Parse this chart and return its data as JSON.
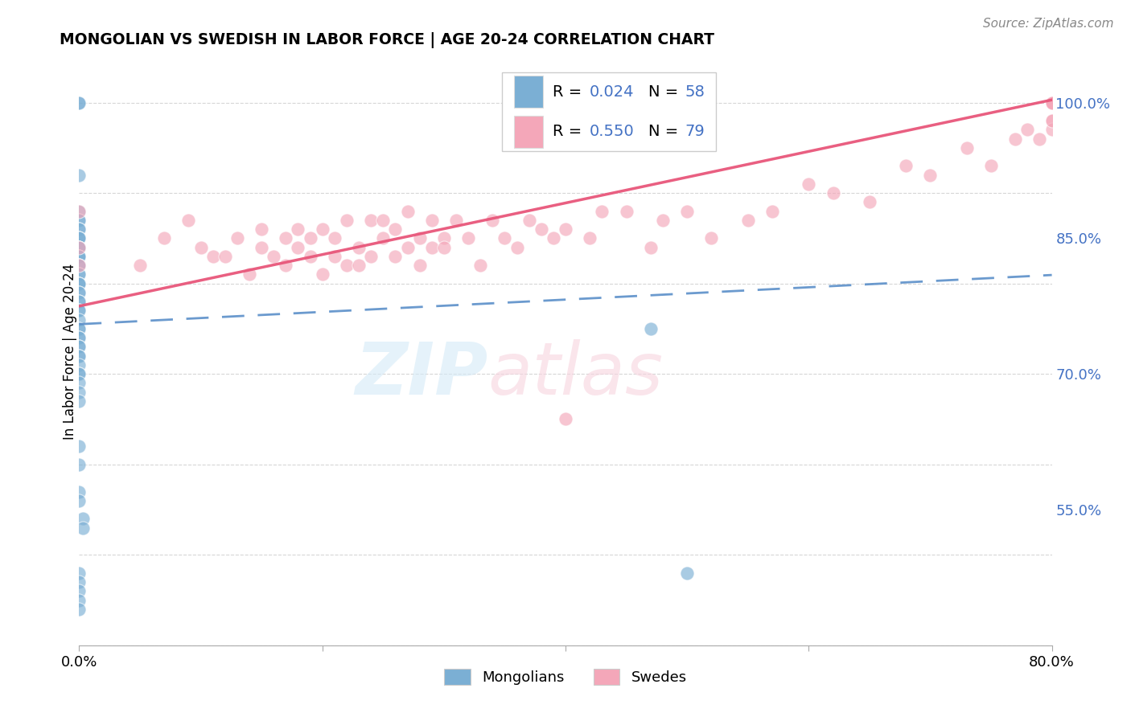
{
  "title": "MONGOLIAN VS SWEDISH IN LABOR FORCE | AGE 20-24 CORRELATION CHART",
  "source_text": "Source: ZipAtlas.com",
  "ylabel": "In Labor Force | Age 20-24",
  "xmin": 0.0,
  "xmax": 0.8,
  "ymin": 0.4,
  "ymax": 1.05,
  "yticks": [
    0.55,
    0.7,
    0.85,
    1.0
  ],
  "ytick_labels": [
    "55.0%",
    "70.0%",
    "85.0%",
    "100.0%"
  ],
  "xticks": [
    0.0,
    0.2,
    0.4,
    0.6,
    0.8
  ],
  "xtick_labels": [
    "0.0%",
    "",
    "",
    "",
    "80.0%"
  ],
  "mongolian_R": 0.024,
  "mongolian_N": 58,
  "swedish_R": 0.55,
  "swedish_N": 79,
  "mongolian_color": "#7bafd4",
  "swedish_color": "#f4a7b9",
  "mongolian_line_color": "#5b8fc9",
  "swedish_line_color": "#e8567a",
  "background_color": "#ffffff",
  "mongolian_x": [
    0.0,
    0.0,
    0.0,
    0.0,
    0.0,
    0.0,
    0.0,
    0.0,
    0.0,
    0.0,
    0.0,
    0.0,
    0.0,
    0.0,
    0.0,
    0.0,
    0.0,
    0.0,
    0.0,
    0.0,
    0.0,
    0.0,
    0.0,
    0.0,
    0.0,
    0.0,
    0.0,
    0.0,
    0.0,
    0.0,
    0.0,
    0.0,
    0.0,
    0.0,
    0.0,
    0.0,
    0.0,
    0.0,
    0.0,
    0.0,
    0.0,
    0.0,
    0.0,
    0.0,
    0.0,
    0.0,
    0.0,
    0.0,
    0.0,
    0.0,
    0.0,
    0.0,
    0.0,
    0.0,
    0.003,
    0.003,
    0.47,
    0.5
  ],
  "mongolian_y": [
    1.0,
    1.0,
    0.92,
    0.88,
    0.87,
    0.87,
    0.86,
    0.86,
    0.85,
    0.85,
    0.85,
    0.84,
    0.84,
    0.84,
    0.83,
    0.83,
    0.83,
    0.82,
    0.82,
    0.81,
    0.81,
    0.8,
    0.8,
    0.8,
    0.79,
    0.79,
    0.78,
    0.78,
    0.77,
    0.77,
    0.76,
    0.75,
    0.75,
    0.74,
    0.74,
    0.73,
    0.73,
    0.72,
    0.72,
    0.71,
    0.7,
    0.7,
    0.69,
    0.68,
    0.67,
    0.62,
    0.6,
    0.57,
    0.56,
    0.48,
    0.47,
    0.46,
    0.45,
    0.44,
    0.54,
    0.53,
    0.75,
    0.48
  ],
  "swedish_x": [
    0.0,
    0.0,
    0.0,
    0.05,
    0.07,
    0.09,
    0.1,
    0.11,
    0.12,
    0.13,
    0.14,
    0.15,
    0.15,
    0.16,
    0.17,
    0.17,
    0.18,
    0.18,
    0.19,
    0.19,
    0.2,
    0.2,
    0.21,
    0.21,
    0.22,
    0.22,
    0.23,
    0.23,
    0.24,
    0.24,
    0.25,
    0.25,
    0.26,
    0.26,
    0.27,
    0.27,
    0.28,
    0.28,
    0.29,
    0.29,
    0.3,
    0.3,
    0.31,
    0.32,
    0.33,
    0.34,
    0.35,
    0.36,
    0.37,
    0.38,
    0.39,
    0.4,
    0.4,
    0.42,
    0.43,
    0.45,
    0.47,
    0.48,
    0.5,
    0.52,
    0.55,
    0.57,
    0.6,
    0.62,
    0.65,
    0.68,
    0.7,
    0.73,
    0.75,
    0.77,
    0.78,
    0.79,
    0.8,
    0.8,
    0.8,
    0.8,
    0.8,
    0.8,
    0.8
  ],
  "swedish_y": [
    0.88,
    0.84,
    0.82,
    0.82,
    0.85,
    0.87,
    0.84,
    0.83,
    0.83,
    0.85,
    0.81,
    0.84,
    0.86,
    0.83,
    0.85,
    0.82,
    0.84,
    0.86,
    0.83,
    0.85,
    0.81,
    0.86,
    0.83,
    0.85,
    0.82,
    0.87,
    0.84,
    0.82,
    0.87,
    0.83,
    0.85,
    0.87,
    0.83,
    0.86,
    0.84,
    0.88,
    0.85,
    0.82,
    0.87,
    0.84,
    0.85,
    0.84,
    0.87,
    0.85,
    0.82,
    0.87,
    0.85,
    0.84,
    0.87,
    0.86,
    0.85,
    0.86,
    0.65,
    0.85,
    0.88,
    0.88,
    0.84,
    0.87,
    0.88,
    0.85,
    0.87,
    0.88,
    0.91,
    0.9,
    0.89,
    0.93,
    0.92,
    0.95,
    0.93,
    0.96,
    0.97,
    0.96,
    1.0,
    1.0,
    1.0,
    0.98,
    0.97,
    0.98,
    1.0
  ]
}
